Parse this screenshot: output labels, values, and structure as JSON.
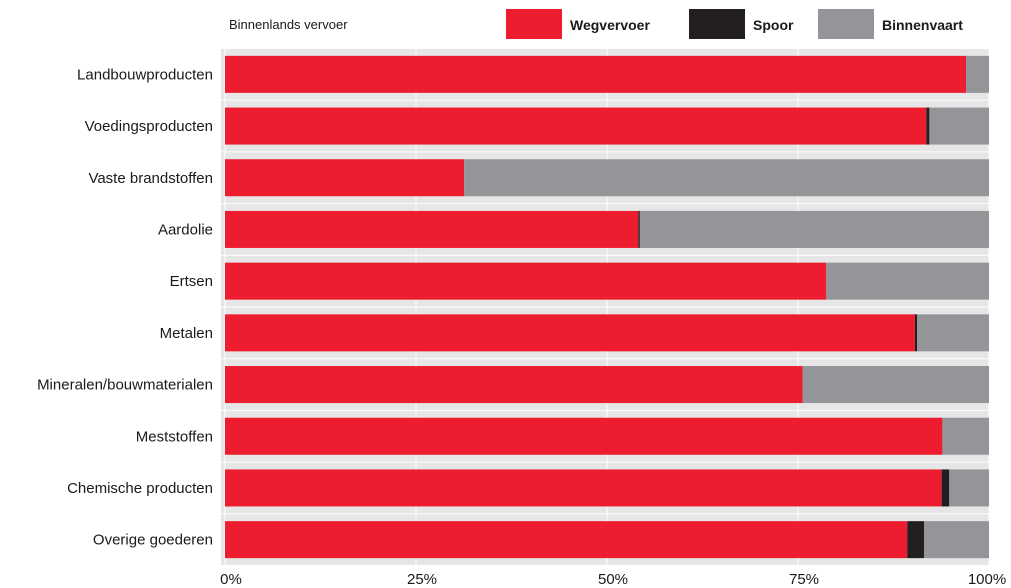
{
  "chart_data": {
    "type": "bar",
    "orientation": "horizontal",
    "stacked": true,
    "subtitle": "Binnenlands vervoer",
    "categories": [
      "Landbouwproducten",
      "Voedingsproducten",
      "Vaste brandstoffen",
      "Aardolie",
      "Ertsen",
      "Metalen",
      "Mineralen/bouwmaterialen",
      "Meststoffen",
      "Chemische producten",
      "Overige goederen"
    ],
    "series": [
      {
        "name": "Wegvervoer",
        "color": "#ed1c2e",
        "values": [
          97.0,
          91.8,
          31.3,
          54.1,
          78.7,
          90.3,
          75.6,
          93.9,
          93.8,
          89.3
        ]
      },
      {
        "name": "Spoor",
        "color": "#231f20",
        "values": [
          0.0,
          0.4,
          0.0,
          0.2,
          0.0,
          0.3,
          0.0,
          0.0,
          1.0,
          2.2
        ]
      },
      {
        "name": "Binnenvaart",
        "color": "#939598",
        "values": [
          3.0,
          7.8,
          68.7,
          45.7,
          21.3,
          9.4,
          24.4,
          6.1,
          5.2,
          8.5
        ]
      }
    ],
    "x_ticks": [
      "0%",
      "25%",
      "50%",
      "75%",
      "100%"
    ],
    "xlim": [
      0,
      100
    ],
    "legend_position": "top-right",
    "band_color": "#e6e6e6"
  }
}
